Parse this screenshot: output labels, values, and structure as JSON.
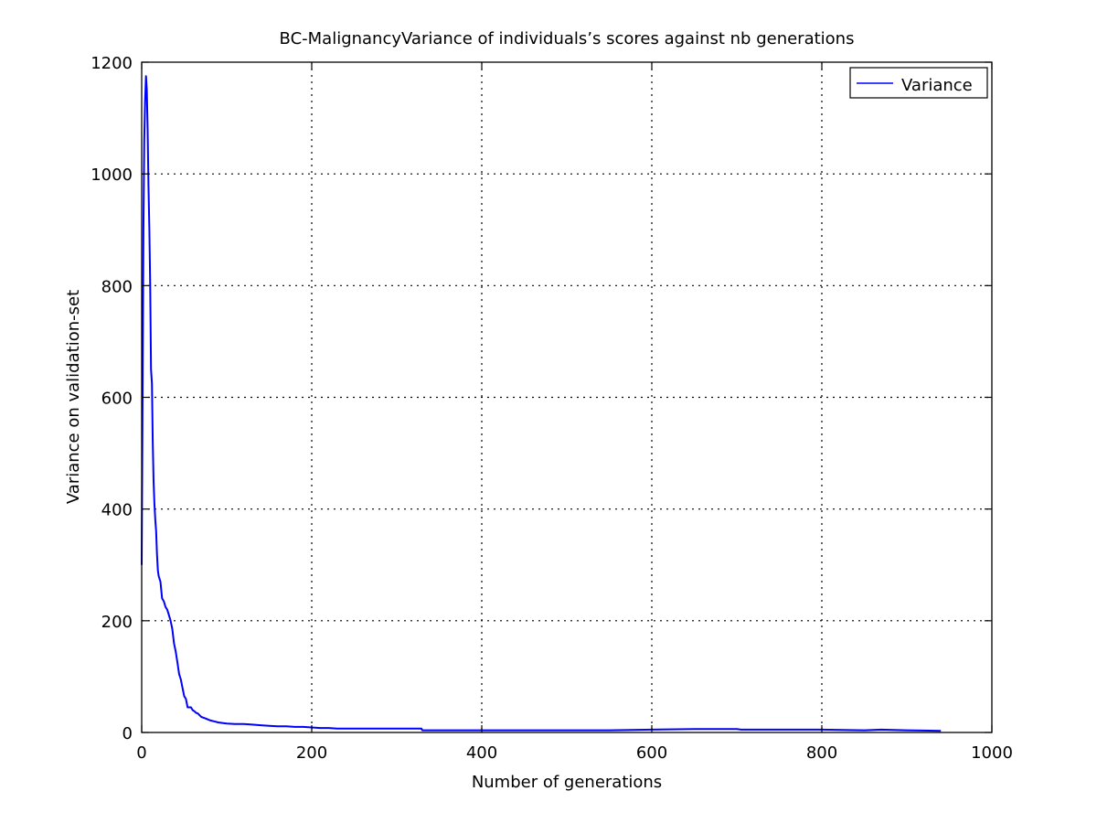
{
  "chart_data": {
    "type": "line",
    "title": "BC-MalignancyVariance of individuals’s scores against nb generations",
    "xlabel": "Number of generations",
    "ylabel": "Variance on validation-set",
    "xlim": [
      0,
      1000
    ],
    "ylim": [
      0,
      1200
    ],
    "xticks": [
      0,
      200,
      400,
      600,
      800,
      1000
    ],
    "yticks": [
      0,
      200,
      400,
      600,
      800,
      1000,
      1200
    ],
    "grid": true,
    "legend_position": "top-right",
    "series": [
      {
        "name": "Variance",
        "color": "#0000ff",
        "x": [
          0,
          1,
          2,
          3,
          4,
          5,
          6,
          7,
          8,
          9,
          10,
          11,
          12,
          13,
          14,
          15,
          16,
          17,
          18,
          19,
          20,
          22,
          24,
          26,
          27,
          28,
          30,
          32,
          34,
          36,
          38,
          40,
          42,
          44,
          46,
          48,
          50,
          52,
          54,
          56,
          58,
          60,
          62,
          64,
          66,
          70,
          75,
          80,
          85,
          90,
          95,
          100,
          110,
          120,
          130,
          140,
          150,
          160,
          170,
          180,
          190,
          200,
          210,
          220,
          230,
          250,
          270,
          290,
          310,
          329,
          330,
          360,
          400,
          450,
          500,
          550,
          600,
          650,
          700,
          705,
          750,
          800,
          850,
          870,
          900,
          940
        ],
        "y": [
          300,
          580,
          900,
          1060,
          1130,
          1175,
          1150,
          1080,
          980,
          900,
          800,
          650,
          625,
          520,
          450,
          410,
          380,
          360,
          320,
          290,
          280,
          270,
          240,
          235,
          230,
          225,
          220,
          210,
          200,
          185,
          160,
          145,
          125,
          105,
          95,
          80,
          65,
          60,
          45,
          45,
          45,
          40,
          38,
          35,
          34,
          28,
          25,
          22,
          20,
          18,
          17,
          16,
          15,
          15,
          14,
          13,
          12,
          11,
          11,
          10,
          10,
          9,
          8,
          8,
          7,
          7,
          7,
          7,
          7,
          7,
          4,
          4,
          4,
          4,
          4,
          4,
          5,
          6,
          6,
          5,
          5,
          5,
          4,
          5,
          4,
          3
        ]
      }
    ]
  }
}
